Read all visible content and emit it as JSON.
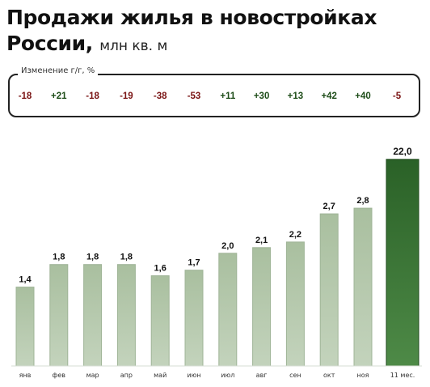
{
  "header": {
    "title_line1": "Продажи жилья в новостройках",
    "title_line2": "России,",
    "unit": "млн кв. м"
  },
  "change": {
    "label": "Изменение г/г, %",
    "values": [
      "-18",
      "+21",
      "-18",
      "-19",
      "-38",
      "-53",
      "+11",
      "+30",
      "+13",
      "+42",
      "+40",
      "-5"
    ]
  },
  "colors": {
    "bar": "#adc2a4",
    "bar_highlight": "#2f6b2c",
    "negative": "#7a1414",
    "positive": "#1e4d19"
  },
  "chart_data": {
    "type": "bar",
    "categories": [
      "янв",
      "фев",
      "мар",
      "апр",
      "май",
      "июн",
      "июл",
      "авг",
      "сен",
      "окт",
      "ноя",
      "11 мес."
    ],
    "values": [
      1.4,
      1.8,
      1.8,
      1.8,
      1.6,
      1.7,
      2.0,
      2.1,
      2.2,
      2.7,
      2.8,
      22.0
    ],
    "value_labels": [
      "1,4",
      "1,8",
      "1,8",
      "1,8",
      "1,6",
      "1,7",
      "2,0",
      "2,1",
      "2,2",
      "2,7",
      "2,8",
      "22,0"
    ],
    "highlight_index": 11,
    "scale_note": "last bar (11-month total) drawn on a compressed scale",
    "grid": false,
    "legend": "none"
  }
}
